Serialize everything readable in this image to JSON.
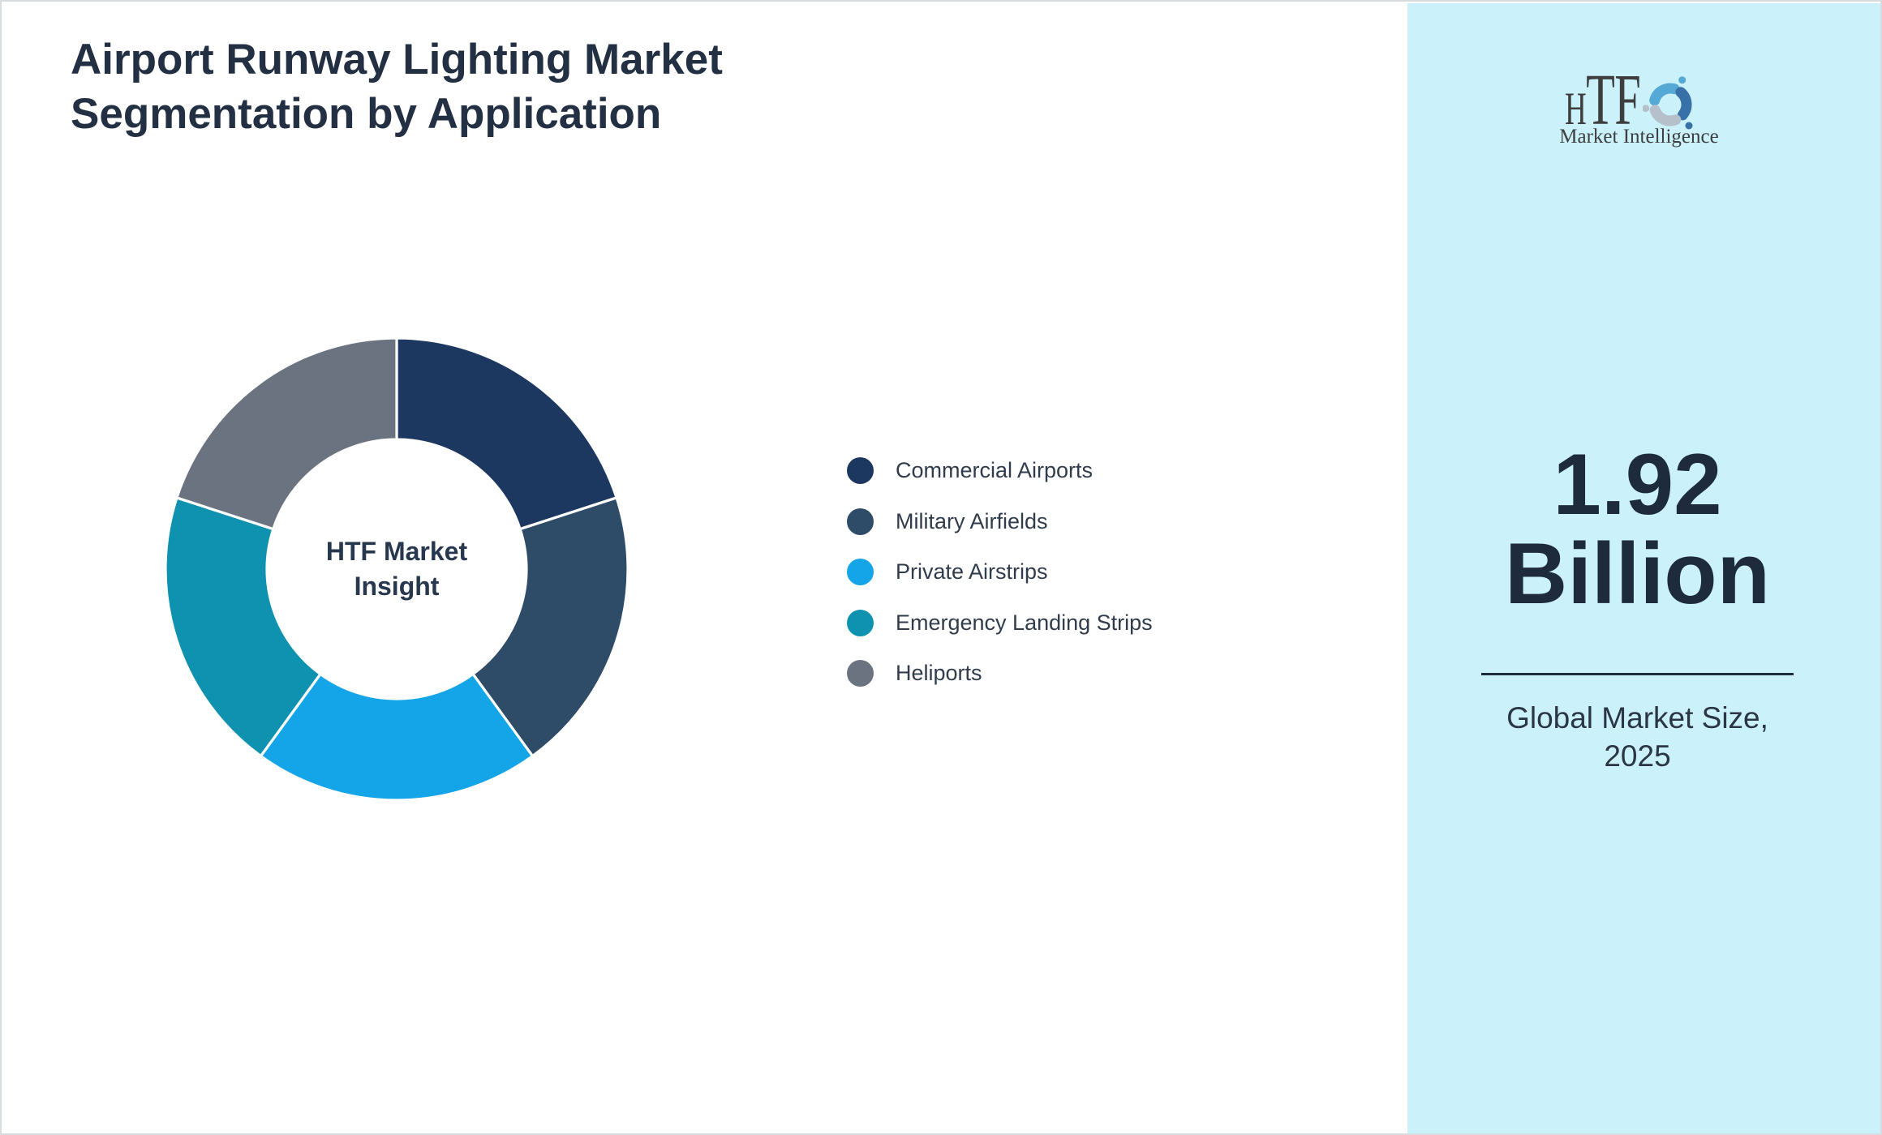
{
  "title": {
    "line1": "Airport Runway Lighting Market",
    "line2": "Segmentation by Application"
  },
  "chart_data": {
    "type": "pie",
    "subtype": "donut",
    "labels": [
      "Commercial Airports",
      "Military Airfields",
      "Private Airstrips",
      "Emergency Landing Strips",
      "Heliports"
    ],
    "values": [
      20,
      20,
      20,
      20,
      20
    ],
    "colors": [
      "#1d3860",
      "#2e4b68",
      "#13a5e8",
      "#0e92af",
      "#6b7381"
    ],
    "center_label_line1": "HTF Market",
    "center_label_line2": "Insight",
    "legend_position": "right",
    "start_angle_deg": 0,
    "direction": "clockwise"
  },
  "panel": {
    "logo_text_h": "H",
    "logo_text_tf": "TF",
    "logo_subtext": "Market Intelligence",
    "value_line1": "1.92",
    "value_line2": "Billion",
    "caption_line1": "Global Market Size,",
    "caption_line2": "2025",
    "background": "#cbf2fb"
  }
}
